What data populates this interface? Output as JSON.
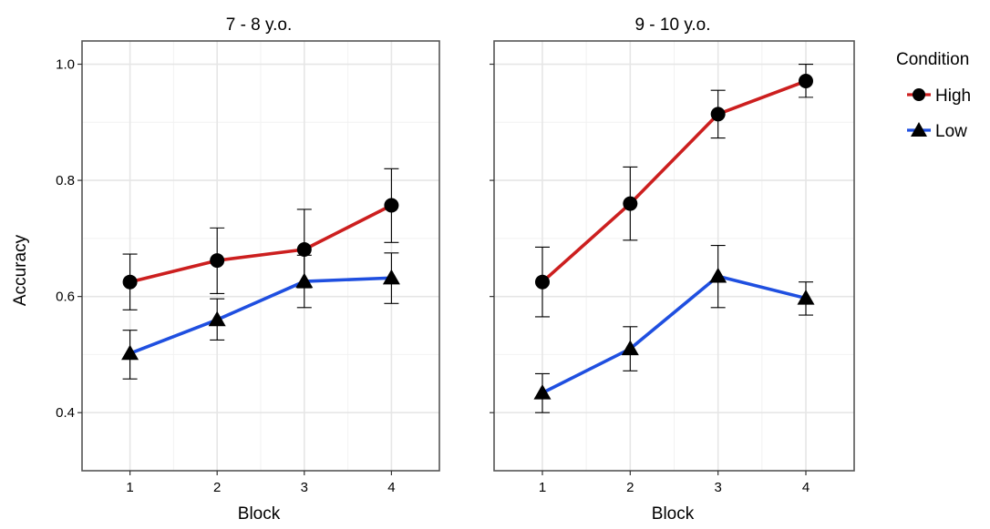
{
  "chart_data": {
    "type": "line",
    "ylabel": "Accuracy",
    "xlabel": "Block",
    "x": [
      1,
      2,
      3,
      4
    ],
    "ylim": [
      0.3,
      1.04
    ],
    "xlim": [
      0.45,
      4.55
    ],
    "y_ticks": [
      0.4,
      0.6,
      0.8,
      1.0
    ],
    "y_tick_labels": [
      "0.4",
      "0.6",
      "0.8",
      "1.0"
    ],
    "x_tick_labels": [
      "1",
      "2",
      "3",
      "4"
    ],
    "grid": true,
    "legend": {
      "title": "Condition",
      "placement": "right",
      "entries": [
        {
          "label": "High",
          "color": "#cc1f1f",
          "marker": "circle"
        },
        {
          "label": "Low",
          "color": "#1f4fe0",
          "marker": "triangle"
        }
      ]
    },
    "panels": [
      {
        "title": "7 - 8 y.o.",
        "series": [
          {
            "name": "High",
            "color": "#cc1f1f",
            "marker": "circle",
            "values": [
              0.625,
              0.662,
              0.681,
              0.757
            ],
            "err_low": [
              0.577,
              0.605,
              0.615,
              0.693
            ],
            "err_high": [
              0.673,
              0.718,
              0.75,
              0.82
            ]
          },
          {
            "name": "Low",
            "color": "#1f4fe0",
            "marker": "triangle",
            "values": [
              0.502,
              0.56,
              0.626,
              0.632
            ],
            "err_low": [
              0.458,
              0.525,
              0.581,
              0.588
            ],
            "err_high": [
              0.542,
              0.596,
              0.671,
              0.675
            ]
          }
        ]
      },
      {
        "title": "9 - 10 y.o.",
        "series": [
          {
            "name": "High",
            "color": "#cc1f1f",
            "marker": "circle",
            "values": [
              0.625,
              0.76,
              0.914,
              0.971
            ],
            "err_low": [
              0.565,
              0.697,
              0.873,
              0.943
            ],
            "err_high": [
              0.685,
              0.823,
              0.955,
              1.0
            ]
          },
          {
            "name": "Low",
            "color": "#1f4fe0",
            "marker": "triangle",
            "values": [
              0.434,
              0.51,
              0.635,
              0.597
            ],
            "err_low": [
              0.4,
              0.472,
              0.581,
              0.568
            ],
            "err_high": [
              0.467,
              0.548,
              0.688,
              0.625
            ]
          }
        ]
      }
    ]
  }
}
